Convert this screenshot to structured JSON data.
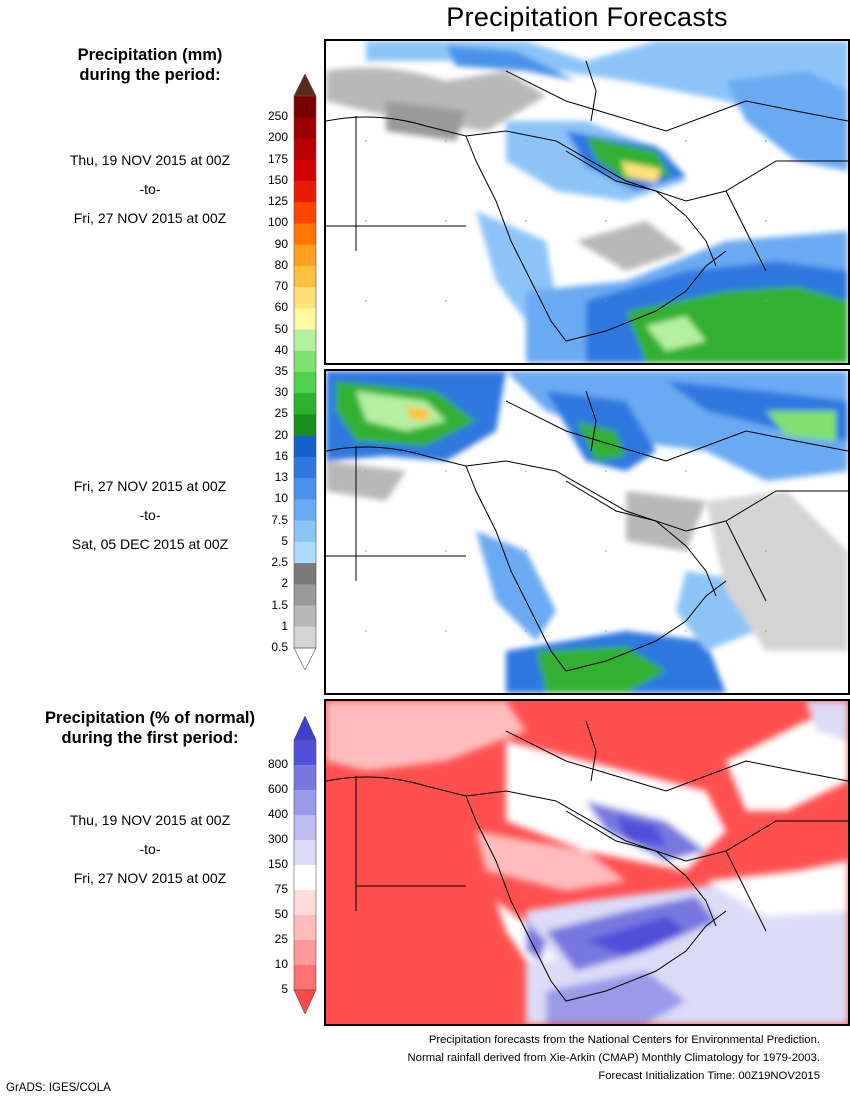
{
  "title": "Precipitation Forecasts",
  "colorbar1": {
    "heading_line1": "Precipitation (mm)",
    "heading_line2": "during the period:",
    "ticks": [
      "250",
      "200",
      "175",
      "150",
      "125",
      "100",
      "90",
      "80",
      "70",
      "60",
      "50",
      "40",
      "35",
      "30",
      "25",
      "20",
      "16",
      "13",
      "10",
      "7.5",
      "5",
      "2.5",
      "2",
      "1.5",
      "1",
      "0.5"
    ],
    "colors": [
      "#7a0000",
      "#9a0000",
      "#b80000",
      "#d40000",
      "#ea1b00",
      "#ff4400",
      "#ff7700",
      "#ffa020",
      "#ffc040",
      "#ffe27a",
      "#fffaa0",
      "#b4f0a0",
      "#80e070",
      "#50d050",
      "#30b030",
      "#16901a",
      "#1560c8",
      "#2e78e0",
      "#4a92ea",
      "#6aaaf2",
      "#8cc4f8",
      "#b0dcfc",
      "#7a7a7a",
      "#9a9a9a",
      "#b8b8b8",
      "#d4d4d4"
    ],
    "top_arrow_color": "#5a2a1a"
  },
  "colorbar2": {
    "heading_line1": "Precipitation (% of normal)",
    "heading_line2": "during the first period:",
    "ticks": [
      "800",
      "600",
      "400",
      "300",
      "150",
      "75",
      "50",
      "25",
      "10",
      "5"
    ],
    "colors": [
      "#5050d8",
      "#7878e0",
      "#9a9ae8",
      "#bcbcf0",
      "#dcdcf8",
      "#ffffff",
      "#ffdcdc",
      "#ffbcbc",
      "#ff9a9a",
      "#ff7070"
    ],
    "top_arrow_color": "#4040d0",
    "bottom_arrow_color": "#ff4848"
  },
  "period1": {
    "start": "Thu, 19 NOV 2015 at 00Z",
    "to": "-to-",
    "end": "Fri, 27 NOV 2015 at 00Z"
  },
  "period2": {
    "start": "Fri, 27 NOV 2015 at 00Z",
    "to": "-to-",
    "end": "Sat, 05 DEC 2015 at 00Z"
  },
  "period3": {
    "start": "Thu, 19 NOV 2015 at 00Z",
    "to": "-to-",
    "end": "Fri, 27 NOV 2015 at 00Z"
  },
  "footer": {
    "line1": "Precipitation forecasts from the National Centers for Environmental Prediction.",
    "line2": "Normal rainfall derived from Xie-Arkin (CMAP) Monthly Climatology for 1979-2003.",
    "line3": "Forecast Initialization Time: 00Z19NOV2015"
  },
  "credit": "GrADS: IGES/COLA"
}
